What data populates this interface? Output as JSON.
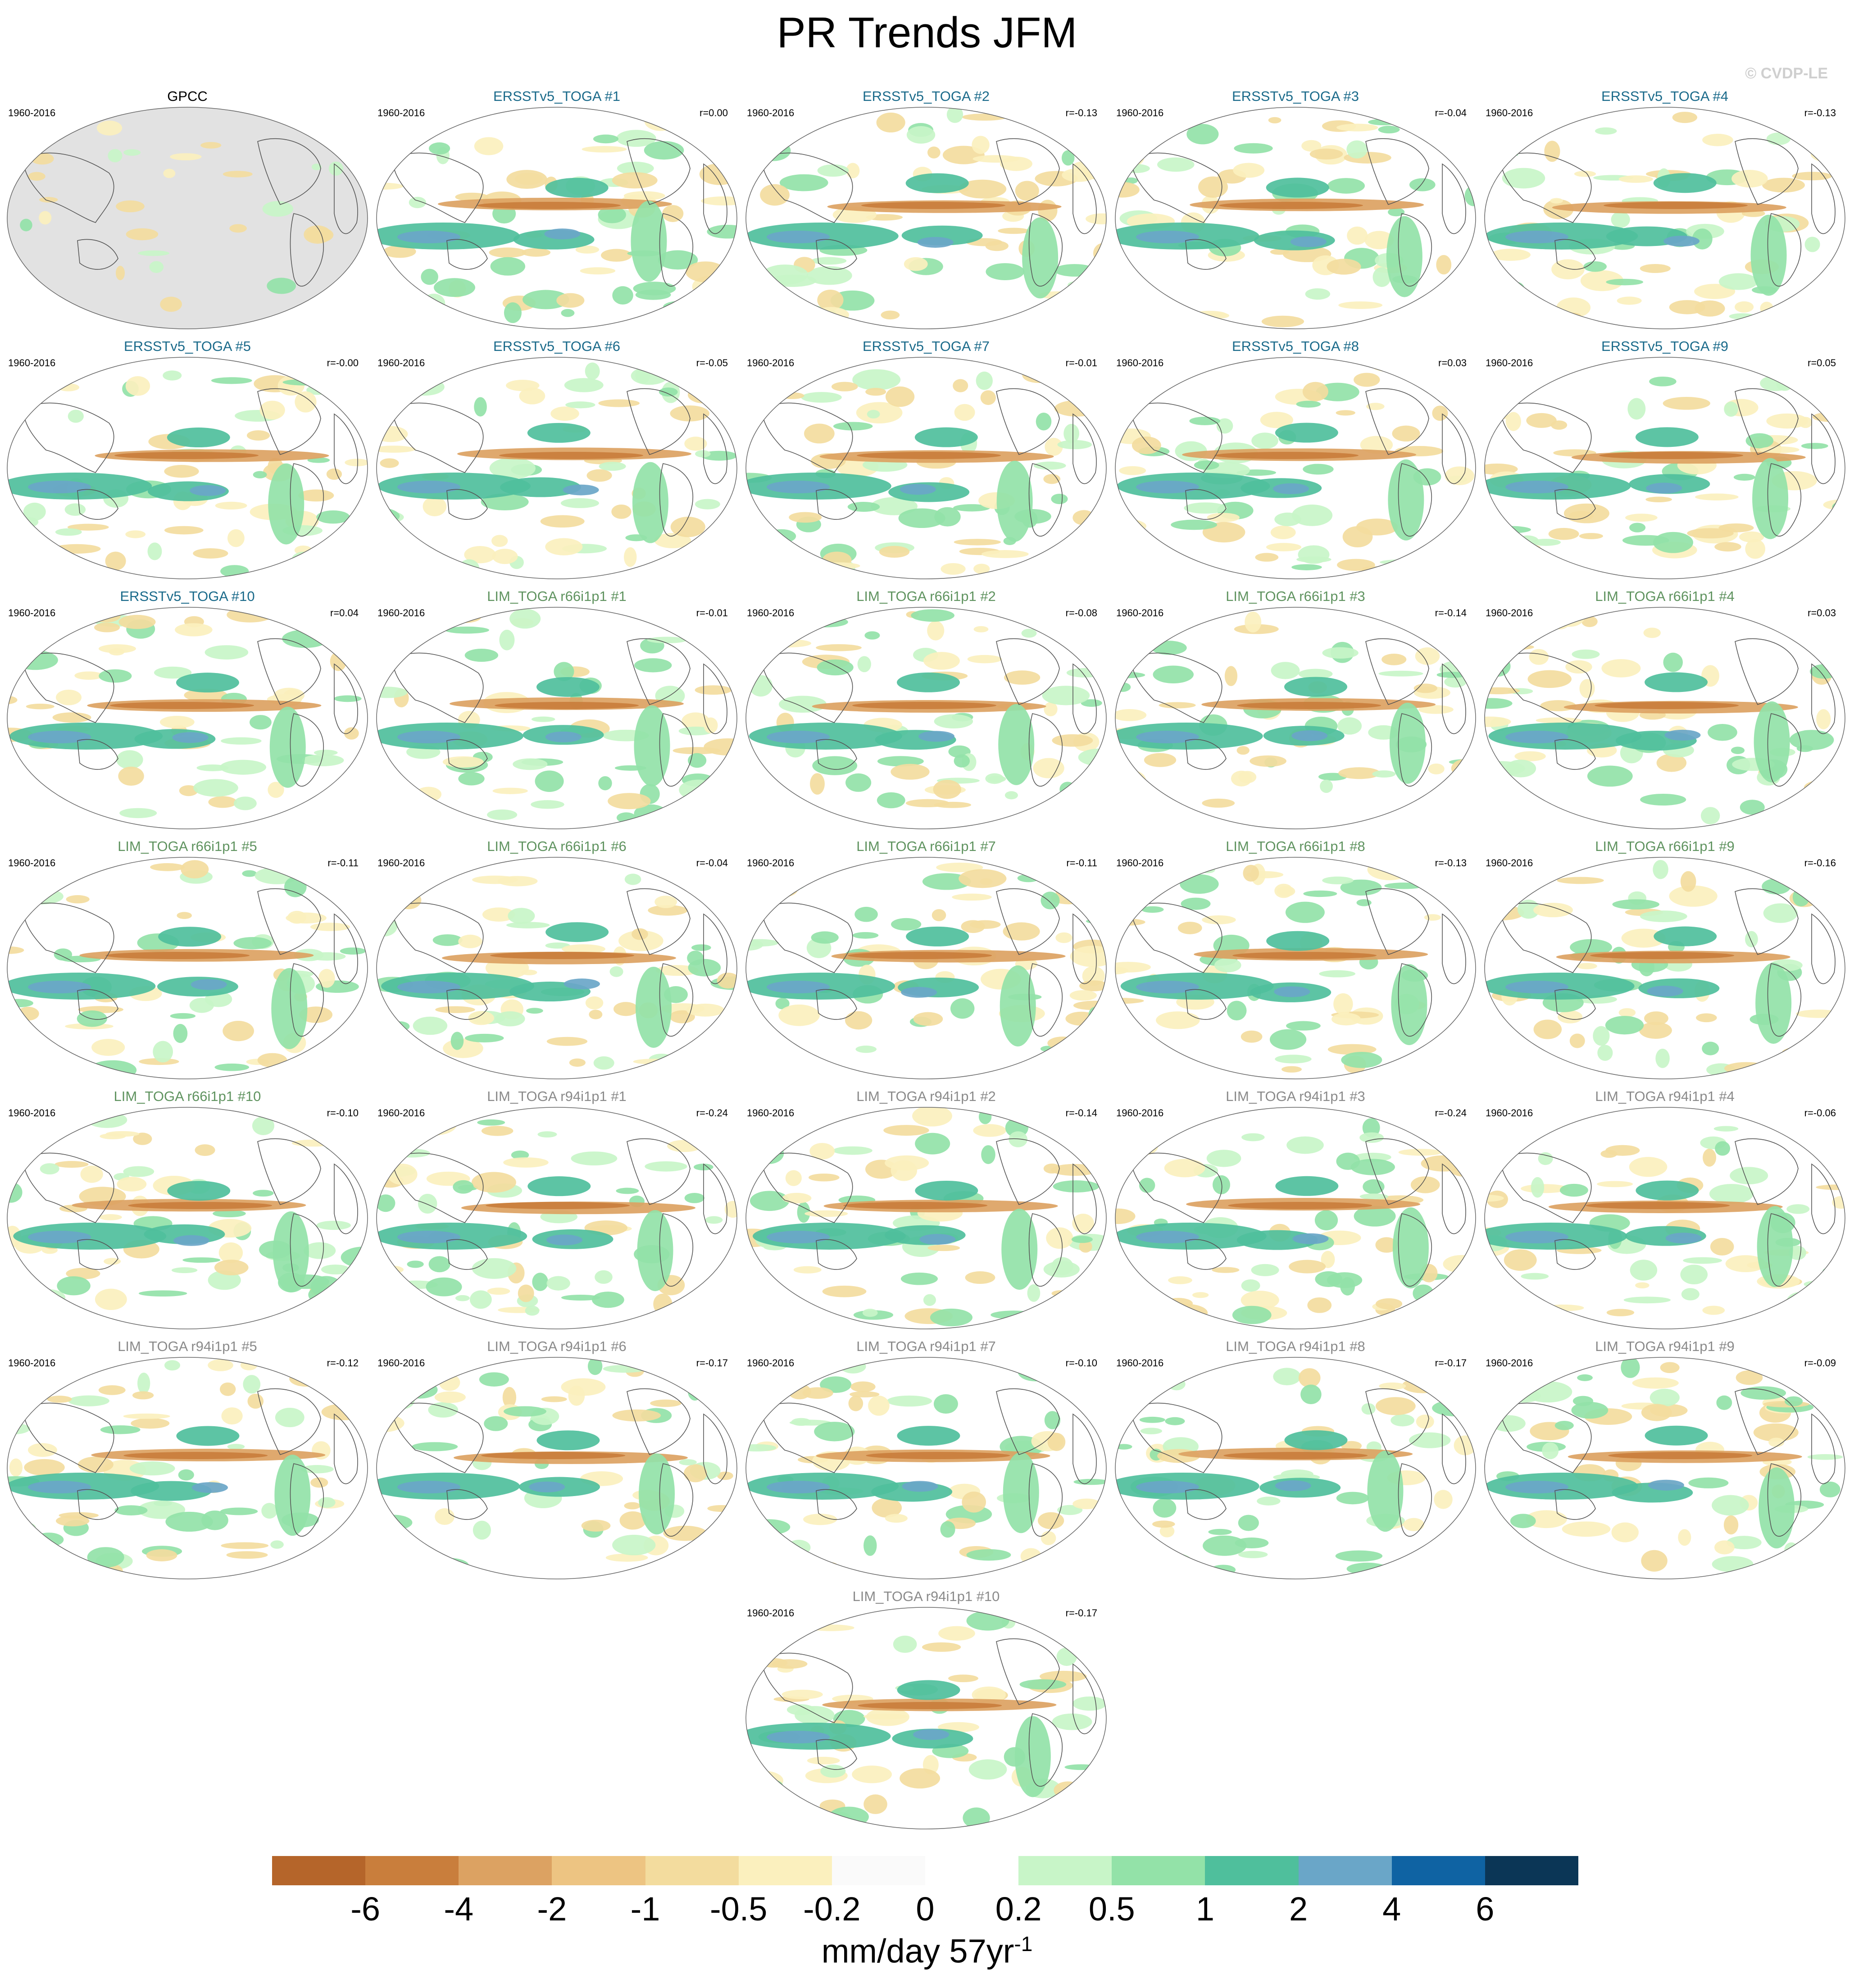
{
  "title": "PR Trends JFM",
  "copyright": "© CVDP-LE",
  "period": "1960-2016",
  "colors": {
    "ersst": "#1a6a8a",
    "lim66": "#5f935f",
    "lim94": "#8a8a8a",
    "obs": "#000000"
  },
  "panels": [
    {
      "title": "GPCC",
      "r": "",
      "group": "obs"
    },
    {
      "title": "ERSSTv5_TOGA #1",
      "r": "r=0.00",
      "group": "ersst"
    },
    {
      "title": "ERSSTv5_TOGA #2",
      "r": "r=-0.13",
      "group": "ersst"
    },
    {
      "title": "ERSSTv5_TOGA #3",
      "r": "r=-0.04",
      "group": "ersst"
    },
    {
      "title": "ERSSTv5_TOGA #4",
      "r": "r=-0.13",
      "group": "ersst"
    },
    {
      "title": "ERSSTv5_TOGA #5",
      "r": "r=-0.00",
      "group": "ersst"
    },
    {
      "title": "ERSSTv5_TOGA #6",
      "r": "r=-0.05",
      "group": "ersst"
    },
    {
      "title": "ERSSTv5_TOGA #7",
      "r": "r=-0.01",
      "group": "ersst"
    },
    {
      "title": "ERSSTv5_TOGA #8",
      "r": "r=0.03",
      "group": "ersst"
    },
    {
      "title": "ERSSTv5_TOGA #9",
      "r": "r=0.05",
      "group": "ersst"
    },
    {
      "title": "ERSSTv5_TOGA #10",
      "r": "r=0.04",
      "group": "ersst"
    },
    {
      "title": "LIM_TOGA r66i1p1 #1",
      "r": "r=-0.01",
      "group": "lim66"
    },
    {
      "title": "LIM_TOGA r66i1p1 #2",
      "r": "r=-0.08",
      "group": "lim66"
    },
    {
      "title": "LIM_TOGA r66i1p1 #3",
      "r": "r=-0.14",
      "group": "lim66"
    },
    {
      "title": "LIM_TOGA r66i1p1 #4",
      "r": "r=0.03",
      "group": "lim66"
    },
    {
      "title": "LIM_TOGA r66i1p1 #5",
      "r": "r=-0.11",
      "group": "lim66"
    },
    {
      "title": "LIM_TOGA r66i1p1 #6",
      "r": "r=-0.04",
      "group": "lim66"
    },
    {
      "title": "LIM_TOGA r66i1p1 #7",
      "r": "r=-0.11",
      "group": "lim66"
    },
    {
      "title": "LIM_TOGA r66i1p1 #8",
      "r": "r=-0.13",
      "group": "lim66"
    },
    {
      "title": "LIM_TOGA r66i1p1 #9",
      "r": "r=-0.16",
      "group": "lim66"
    },
    {
      "title": "LIM_TOGA r66i1p1 #10",
      "r": "r=-0.10",
      "group": "lim66"
    },
    {
      "title": "LIM_TOGA r94i1p1 #1",
      "r": "r=-0.24",
      "group": "lim94"
    },
    {
      "title": "LIM_TOGA r94i1p1 #2",
      "r": "r=-0.14",
      "group": "lim94"
    },
    {
      "title": "LIM_TOGA r94i1p1 #3",
      "r": "r=-0.24",
      "group": "lim94"
    },
    {
      "title": "LIM_TOGA r94i1p1 #4",
      "r": "r=-0.06",
      "group": "lim94"
    },
    {
      "title": "LIM_TOGA r94i1p1 #5",
      "r": "r=-0.12",
      "group": "lim94"
    },
    {
      "title": "LIM_TOGA r94i1p1 #6",
      "r": "r=-0.17",
      "group": "lim94"
    },
    {
      "title": "LIM_TOGA r94i1p1 #7",
      "r": "r=-0.10",
      "group": "lim94"
    },
    {
      "title": "LIM_TOGA r94i1p1 #8",
      "r": "r=-0.17",
      "group": "lim94"
    },
    {
      "title": "LIM_TOGA r94i1p1 #9",
      "r": "r=-0.09",
      "group": "lim94"
    },
    {
      "title": "LIM_TOGA r94i1p1 #10",
      "r": "r=-0.17",
      "group": "lim94"
    }
  ],
  "colorbar": {
    "colors": [
      "#b5652a",
      "#c97e3c",
      "#dca262",
      "#edc482",
      "#f3dc9e",
      "#fbf0be",
      "#fafafa",
      "#ffffff",
      "#c8f5c8",
      "#93e2a8",
      "#4fbf9c",
      "#6aa6c8",
      "#0f63a3",
      "#0b3656"
    ],
    "labels": [
      "-6",
      "-4",
      "-2",
      "-1",
      "-0.5",
      "-0.2",
      "0",
      "0.2",
      "0.5",
      "1",
      "2",
      "4",
      "6"
    ],
    "units": "mm/day 57yr",
    "units_exp": "-1"
  }
}
